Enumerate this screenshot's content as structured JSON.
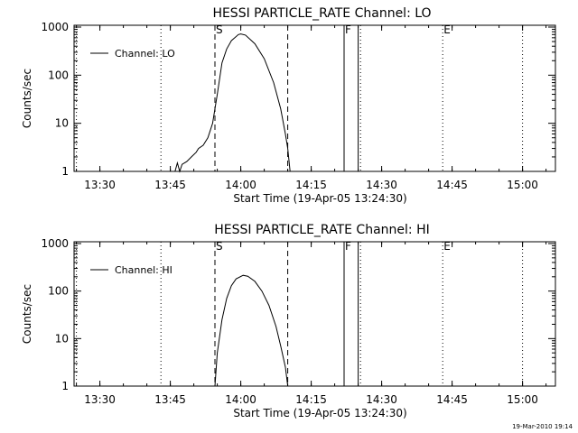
{
  "footer": {
    "timestamp": "19-Mar-2010 19:14"
  },
  "chart_data": [
    {
      "type": "line",
      "title": "HESSI PARTICLE_RATE Channel: LO",
      "xlabel": "Start Time (19-Apr-05 13:24:30)",
      "ylabel": "Counts/sec",
      "yscale": "log",
      "ylim": [
        1,
        1000
      ],
      "xlim_minutes": [
        "13:24:30",
        "15:07:00"
      ],
      "xticks": [
        "13:30",
        "13:45",
        "14:00",
        "14:15",
        "14:30",
        "14:45",
        "15:00"
      ],
      "yticks": [
        "1",
        "10",
        "100",
        "1000"
      ],
      "legend": {
        "position": "top-left",
        "label": "Channel: LO"
      },
      "markers": [
        {
          "label": "S",
          "time": "13:54:30",
          "style": "dashed"
        },
        {
          "label": "",
          "time": "14:10:00",
          "style": "dashed"
        },
        {
          "label": "F",
          "time": "14:22:00",
          "style": "solid"
        },
        {
          "label": "",
          "time": "14:25:00",
          "style": "solid"
        },
        {
          "label": "E",
          "time": "14:43:00",
          "style": "dotted"
        }
      ],
      "dotted_lines": [
        "13:25:00",
        "13:43:00",
        "14:25:30",
        "15:00:00"
      ],
      "series": [
        {
          "name": "Channel: LO",
          "points": [
            [
              "13:46:00",
              1
            ],
            [
              "13:46:30",
              1.5
            ],
            [
              "13:47:00",
              1
            ],
            [
              "13:47:30",
              1.4
            ],
            [
              "13:48:30",
              1.6
            ],
            [
              "13:49:30",
              2
            ],
            [
              "13:50:30",
              2.5
            ],
            [
              "13:51:00",
              3
            ],
            [
              "13:52:00",
              3.5
            ],
            [
              "13:53:00",
              5
            ],
            [
              "13:54:00",
              10
            ],
            [
              "13:55:00",
              40
            ],
            [
              "13:56:00",
              180
            ],
            [
              "13:57:00",
              350
            ],
            [
              "13:58:00",
              520
            ],
            [
              "13:59:30",
              700
            ],
            [
              "14:00:00",
              720
            ],
            [
              "14:01:00",
              680
            ],
            [
              "14:03:00",
              450
            ],
            [
              "14:05:00",
              220
            ],
            [
              "14:07:00",
              70
            ],
            [
              "14:08:30",
              20
            ],
            [
              "14:09:30",
              6
            ],
            [
              "14:10:00",
              3
            ],
            [
              "14:10:30",
              1
            ]
          ]
        }
      ]
    },
    {
      "type": "line",
      "title": "HESSI PARTICLE_RATE Channel: HI",
      "xlabel": "Start Time (19-Apr-05 13:24:30)",
      "ylabel": "Counts/sec",
      "yscale": "log",
      "ylim": [
        1,
        1000
      ],
      "xlim_minutes": [
        "13:24:30",
        "15:07:00"
      ],
      "xticks": [
        "13:30",
        "13:45",
        "14:00",
        "14:15",
        "14:30",
        "14:45",
        "15:00"
      ],
      "yticks": [
        "1",
        "10",
        "100",
        "1000"
      ],
      "legend": {
        "position": "top-left",
        "label": "Channel: HI"
      },
      "markers": [
        {
          "label": "S",
          "time": "13:54:30",
          "style": "dashed"
        },
        {
          "label": "",
          "time": "14:10:00",
          "style": "dashed"
        },
        {
          "label": "F",
          "time": "14:22:00",
          "style": "solid"
        },
        {
          "label": "",
          "time": "14:25:00",
          "style": "solid"
        },
        {
          "label": "E",
          "time": "14:43:00",
          "style": "dotted"
        }
      ],
      "dotted_lines": [
        "13:25:00",
        "13:43:00",
        "14:25:30",
        "15:00:00"
      ],
      "series": [
        {
          "name": "Channel: HI",
          "points": [
            [
              "13:54:30",
              1
            ],
            [
              "13:55:00",
              5
            ],
            [
              "13:56:00",
              25
            ],
            [
              "13:57:00",
              70
            ],
            [
              "13:58:00",
              130
            ],
            [
              "13:59:00",
              180
            ],
            [
              "14:00:30",
              215
            ],
            [
              "14:01:30",
              205
            ],
            [
              "14:03:00",
              160
            ],
            [
              "14:04:30",
              100
            ],
            [
              "14:06:00",
              50
            ],
            [
              "14:07:30",
              18
            ],
            [
              "14:08:30",
              7
            ],
            [
              "14:09:30",
              2.5
            ],
            [
              "14:10:00",
              1
            ]
          ]
        }
      ]
    }
  ]
}
